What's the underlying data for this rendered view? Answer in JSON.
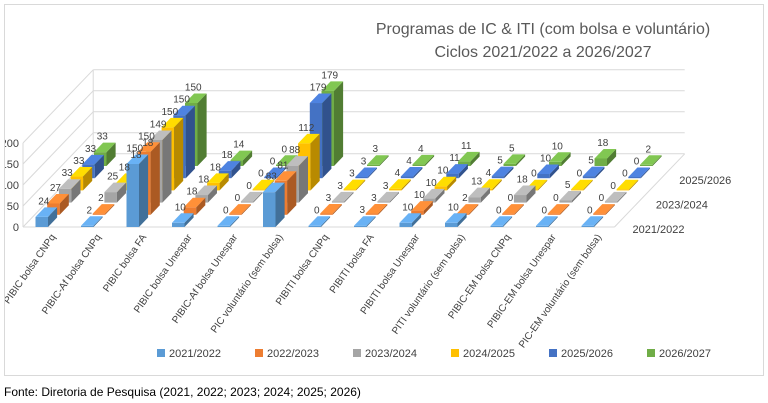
{
  "chart_data": {
    "type": "bar",
    "variant": "3d-clustered-column",
    "title": [
      "Programas de IC & ITI (com bolsa e voluntário)",
      "Ciclos 2021/2022 a 2026/2027"
    ],
    "categories": [
      "PIBIC bolsa CNPq",
      "PIBIC-Af bolsa CNPq",
      "PIBIC bolsa FA",
      "PIBIC bolsa Unespar",
      "PIBIC-Af bolsa Unespar",
      "PIC voluntário (sem bolsa)",
      "PIBITI bolsa CNPq",
      "PIBITI bolsa FA",
      "PIBITI bolsa Unespar",
      "PITI voluntário (sem bolsa)",
      "PIBIC-EM bolsa CNPq",
      "PIBIC-EM bolsa Unespar",
      "PIC-EM voluntário (sem bolsa)"
    ],
    "depth_axis_labels": [
      "2025/2026",
      "2023/2024",
      "2021/2022"
    ],
    "yticks": [
      0,
      50,
      100,
      150,
      200
    ],
    "ylim": [
      0,
      200
    ],
    "legend_position": "bottom",
    "series": [
      {
        "name": "2021/2022",
        "color": "#5B9BD5",
        "values": [
          24,
          2,
          150,
          10,
          0,
          83,
          0,
          3,
          10,
          10,
          0,
          0,
          0
        ]
      },
      {
        "name": "2022/2023",
        "color": "#ED7D31",
        "values": [
          27,
          2,
          150,
          18,
          0,
          81,
          3,
          3,
          10,
          2,
          0,
          0,
          0
        ]
      },
      {
        "name": "2023/2024",
        "color": "#A5A5A5",
        "values": [
          33,
          25,
          149,
          18,
          0,
          88,
          3,
          3,
          10,
          13,
          18,
          5,
          0
        ]
      },
      {
        "name": "2024/2025",
        "color": "#FFC000",
        "values": [
          33,
          18,
          150,
          18,
          0,
          112,
          3,
          4,
          10,
          4,
          0,
          0,
          0
        ]
      },
      {
        "name": "2025/2026",
        "color": "#4472C4",
        "values": [
          33,
          18,
          150,
          18,
          0,
          179,
          3,
          4,
          11,
          5,
          10,
          5,
          0
        ]
      },
      {
        "name": "2026/2027",
        "color": "#70AD47",
        "values": [
          33,
          18,
          150,
          14,
          0,
          179,
          3,
          4,
          11,
          5,
          10,
          18,
          2
        ]
      }
    ]
  },
  "source_note": "Fonte: Diretoria de Pesquisa (2021, 2022; 2023; 2024; 2025; 2026)"
}
